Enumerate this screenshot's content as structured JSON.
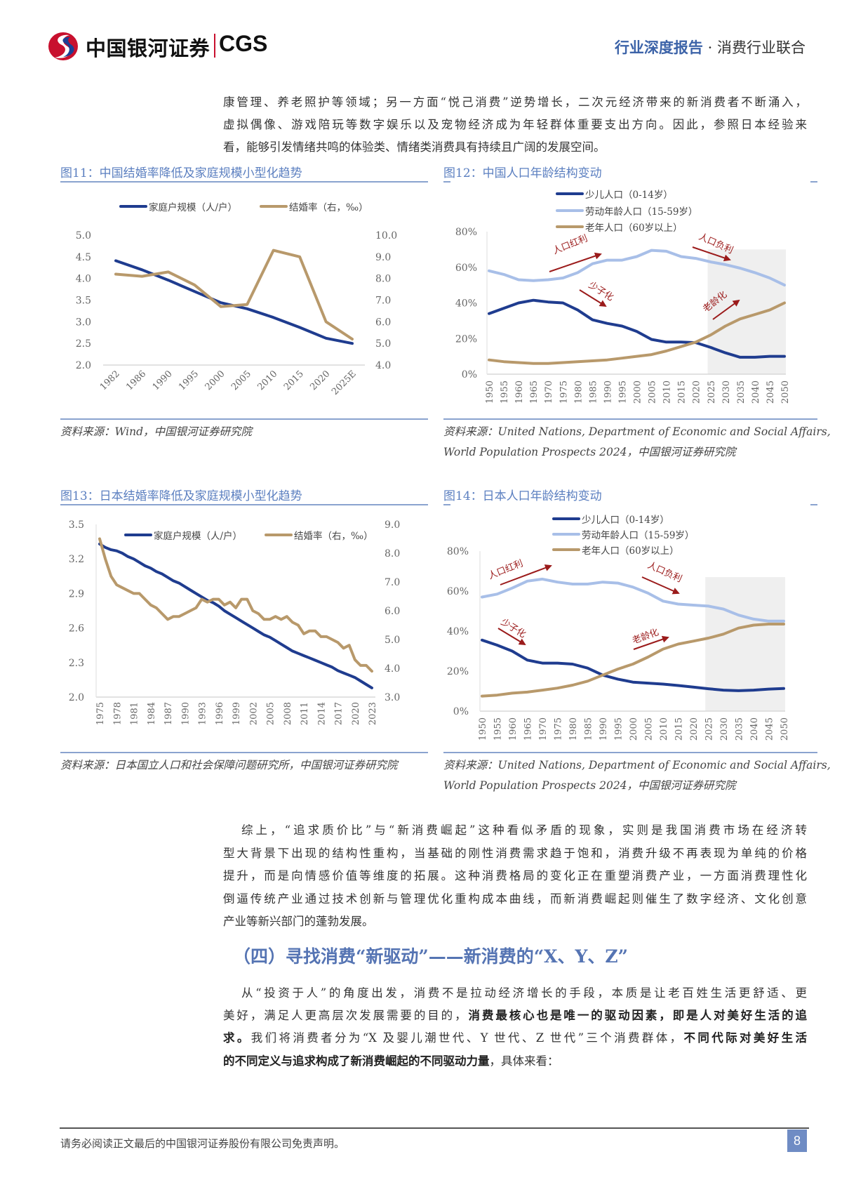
{
  "header": {
    "logo_cn": "中国银河证券",
    "logo_en": "CGS",
    "report_type": "行业深度报告",
    "separator": "·",
    "industry": "消费行业联合"
  },
  "para1": [
    "康管理、养老照护等领域；另一方面“悦己消费”逆势增长，二次元经济带来的新消费者不断涌入，",
    "虚拟偶像、游戏陪玩等数字娱乐以及宠物经济成为年轻群体重要支出方向。因此，参照日本经验来",
    "看，能够引发情绪共鸣的体验类、情绪类消费具有持续且广阔的发展空间。"
  ],
  "para2": [
    "综上，“追求质价比”与“新消费崛起”这种看似矛盾的现象，实则是我国消费市场在经济转",
    "型大背景下出现的结构性重构，当基础的刚性消费需求趋于饱和，消费升级不再表现为单纯的价格",
    "提升，而是向情感价值等维度的拓展。这种消费格局的变化正在重塑消费产业，一方面消费理性化",
    "倒逼传统产业通过技术创新与管理优化重构成本曲线，而新消费崛起则催生了数字经济、文化创意",
    "产业等新兴部门的蓬勃发展。"
  ],
  "section_heading": "（四）寻找消费“新驱动”——新消费的“X、Y、Z”",
  "para3": {
    "l1": "从“投资于人”的角度出发，消费不是拉动经济增长的手段，本质是让老百姓生活更舒适、更",
    "l2a": "美好，满足人更高层次发展需要的目的，",
    "l2b": "消费最核心也是唯一的驱动因素，即是人对美好生活的追",
    "l3a": "求。",
    "l3b": "我们将消费者分为“X 及婴儿潮世代、Y 世代、Z 世代”三个消费群体，",
    "l3c": "不同代际对美好生活",
    "l4a": "的不同定义与追求构成了新消费崛起的不同驱动力量",
    "l4b": "，具体来看："
  },
  "footer": {
    "disclaimer": "请务必阅读正文最后的中国银河证券股份有限公司免责声明。",
    "page_number": "8"
  },
  "colors": {
    "navy": "#1f3c8f",
    "gold": "#b8996b",
    "light_blue": "#a8bfe8",
    "annotation_red": "#9b1b1b",
    "title_blue": "#5b7fc0",
    "forecast_shade": "#efefef"
  },
  "chart_data": [
    {
      "id": "fig11",
      "type": "line",
      "title": "图11：中国结婚率降低及家庭规模小型化趋势",
      "source": "资料来源：Wind，中国银河证券研究院",
      "categories": [
        "1982",
        "1986",
        "1990",
        "1995",
        "2000",
        "2005",
        "2010",
        "2015",
        "2020",
        "2025E"
      ],
      "y_left": {
        "range": [
          2.0,
          5.0
        ],
        "ticks": [
          "5.0",
          "4.5",
          "4.0",
          "3.5",
          "3.0",
          "2.5",
          "2.0"
        ]
      },
      "y_right": {
        "range": [
          4.0,
          10.0
        ],
        "ticks": [
          "10.0",
          "9.0",
          "8.0",
          "7.0",
          "6.0",
          "5.0",
          "4.0"
        ]
      },
      "legend_placement": "top",
      "series": [
        {
          "name": "家庭户规模（人/户）",
          "axis": "left",
          "color": "#1f3c8f",
          "values": [
            4.41,
            4.2,
            3.96,
            3.7,
            3.44,
            3.3,
            3.1,
            2.87,
            2.62,
            2.5
          ]
        },
        {
          "name": "结婚率（右，‰）",
          "axis": "right",
          "color": "#b8996b",
          "values": [
            8.2,
            8.1,
            8.3,
            7.7,
            6.7,
            6.8,
            9.3,
            9.0,
            6.0,
            5.2
          ]
        }
      ]
    },
    {
      "id": "fig12",
      "type": "line",
      "title": "图12：中国人口年龄结构变动",
      "source_lines": [
        "资料来源：United Nations, Department of Economic and Social Affairs,",
        "World Population Prospects 2024，中国银河证券研究院"
      ],
      "x": [
        1950,
        1955,
        1960,
        1965,
        1970,
        1975,
        1980,
        1985,
        1990,
        1995,
        2000,
        2005,
        2010,
        2015,
        2020,
        2025,
        2030,
        2035,
        2040,
        2045,
        2050
      ],
      "x_ticks": [
        "1950",
        "1955",
        "1960",
        "1965",
        "1970",
        "1975",
        "1980",
        "1985",
        "1990",
        "1995",
        "2000",
        "2005",
        "2010",
        "2015",
        "2020",
        "2025",
        "2030",
        "2035",
        "2040",
        "2045",
        "2050"
      ],
      "y": {
        "range": [
          0,
          80
        ],
        "ticks": [
          "80%",
          "60%",
          "40%",
          "20%",
          "0%"
        ]
      },
      "forecast_shade": {
        "from": 2024,
        "to": 2050,
        "top": 70
      },
      "legend_placement": "top",
      "series": [
        {
          "name": "少儿人口（0-14岁）",
          "color": "#1f3c8f",
          "values": [
            34,
            37,
            40,
            41.5,
            40.5,
            40,
            36,
            30.5,
            28.5,
            27,
            24,
            19.5,
            18,
            18,
            17.7,
            15,
            12,
            9.5,
            9.5,
            10,
            10
          ]
        },
        {
          "name": "劳动年龄人口（15-59岁）",
          "color": "#a8bfe8",
          "values": [
            58,
            56,
            53,
            52.5,
            53,
            54,
            57,
            62,
            64,
            64,
            66,
            69.5,
            69,
            66,
            65,
            63,
            61.5,
            59.5,
            57,
            54,
            50
          ]
        },
        {
          "name": "老年人口（60岁以上）",
          "color": "#b8996b",
          "values": [
            8,
            7,
            6.5,
            6,
            6,
            6.5,
            7,
            7.5,
            8,
            9,
            10,
            11,
            13,
            15.5,
            18,
            22,
            27,
            31,
            33.5,
            36,
            40
          ]
        }
      ],
      "annotations": [
        "人口红利",
        "少子化",
        "人口负利",
        "老龄化"
      ]
    },
    {
      "id": "fig13",
      "type": "line",
      "title": "图13：日本结婚率降低及家庭规模小型化趋势",
      "source": "资料来源：日本国立人口和社会保障问题研究所，中国银河证券研究院",
      "x": [
        1975,
        1976,
        1977,
        1978,
        1979,
        1980,
        1981,
        1982,
        1983,
        1984,
        1985,
        1986,
        1987,
        1988,
        1989,
        1990,
        1991,
        1992,
        1993,
        1994,
        1995,
        1996,
        1997,
        1998,
        1999,
        2000,
        2001,
        2002,
        2003,
        2004,
        2005,
        2006,
        2007,
        2008,
        2009,
        2010,
        2011,
        2012,
        2013,
        2014,
        2015,
        2016,
        2017,
        2018,
        2019,
        2020,
        2021,
        2022,
        2023
      ],
      "x_ticks": [
        "1975",
        "1978",
        "1981",
        "1984",
        "1987",
        "1990",
        "1993",
        "1996",
        "1999",
        "2002",
        "2005",
        "2008",
        "2011",
        "2014",
        "2017",
        "2020",
        "2023"
      ],
      "y_left": {
        "range": [
          2.0,
          3.5
        ],
        "ticks": [
          "3.5",
          "3.2",
          "2.9",
          "2.6",
          "2.3",
          "2.0"
        ]
      },
      "y_right": {
        "range": [
          3.0,
          9.0
        ],
        "ticks": [
          "9.0",
          "8.0",
          "7.0",
          "6.0",
          "5.0",
          "4.0",
          "3.0"
        ]
      },
      "legend_placement": "top",
      "series": [
        {
          "name": "家庭户规模（人/户）",
          "axis": "left",
          "color": "#1f3c8f",
          "values": [
            3.33,
            3.3,
            3.28,
            3.27,
            3.25,
            3.22,
            3.2,
            3.17,
            3.14,
            3.12,
            3.09,
            3.07,
            3.04,
            3.01,
            2.99,
            2.96,
            2.93,
            2.9,
            2.87,
            2.84,
            2.82,
            2.79,
            2.75,
            2.72,
            2.69,
            2.66,
            2.63,
            2.6,
            2.57,
            2.54,
            2.52,
            2.49,
            2.46,
            2.43,
            2.4,
            2.38,
            2.36,
            2.34,
            2.32,
            2.3,
            2.28,
            2.26,
            2.23,
            2.21,
            2.19,
            2.17,
            2.14,
            2.11,
            2.08
          ]
        },
        {
          "name": "结婚率（右，‰）",
          "axis": "right",
          "color": "#b8996b",
          "values": [
            8.5,
            7.8,
            7.2,
            6.9,
            6.8,
            6.7,
            6.6,
            6.6,
            6.4,
            6.2,
            6.1,
            5.9,
            5.7,
            5.8,
            5.8,
            5.9,
            6.0,
            6.1,
            6.4,
            6.3,
            6.4,
            6.4,
            6.2,
            6.3,
            6.1,
            6.4,
            6.4,
            6.0,
            5.9,
            5.7,
            5.7,
            5.8,
            5.7,
            5.8,
            5.6,
            5.5,
            5.2,
            5.3,
            5.3,
            5.1,
            5.1,
            5.0,
            4.9,
            4.7,
            4.8,
            4.3,
            4.1,
            4.1,
            3.9
          ]
        }
      ]
    },
    {
      "id": "fig14",
      "type": "line",
      "title": "图14：日本人口年龄结构变动",
      "source_lines": [
        "资料来源：United Nations, Department of Economic and Social Affairs,",
        "World Population Prospects 2024，中国银河证券研究院"
      ],
      "x": [
        1950,
        1955,
        1960,
        1965,
        1970,
        1975,
        1980,
        1985,
        1990,
        1995,
        2000,
        2005,
        2010,
        2015,
        2020,
        2025,
        2030,
        2035,
        2040,
        2045,
        2050
      ],
      "x_ticks": [
        "1950",
        "1955",
        "1960",
        "1965",
        "1970",
        "1975",
        "1980",
        "1985",
        "1990",
        "1995",
        "2000",
        "2005",
        "2010",
        "2015",
        "2020",
        "2025",
        "2030",
        "2035",
        "2040",
        "2045",
        "2050"
      ],
      "y": {
        "range": [
          0,
          80
        ],
        "ticks": [
          "80%",
          "60%",
          "40%",
          "20%",
          "0%"
        ]
      },
      "forecast_shade": {
        "from": 2024,
        "to": 2050,
        "top": 67
      },
      "legend_placement": "top",
      "series": [
        {
          "name": "少儿人口（0-14岁）",
          "color": "#1f3c8f",
          "values": [
            35.5,
            33,
            30,
            25.5,
            24,
            24,
            23.5,
            21.5,
            18,
            16,
            14.5,
            14,
            13.5,
            12.8,
            12,
            11.2,
            10.5,
            10.2,
            10.5,
            11,
            11.3
          ]
        },
        {
          "name": "劳动年龄人口（15-59岁）",
          "color": "#a8bfe8",
          "values": [
            57,
            58.5,
            61.5,
            65,
            66,
            64.5,
            63.5,
            63.5,
            64.5,
            64,
            62,
            59,
            55,
            53.5,
            53,
            52.5,
            51,
            48,
            46,
            45,
            45
          ]
        },
        {
          "name": "老年人口（60岁以上）",
          "color": "#b8996b",
          "values": [
            7.5,
            8,
            9,
            9.5,
            10.5,
            11.5,
            13,
            15,
            18,
            21,
            23.5,
            27,
            31,
            33.5,
            35,
            36.5,
            38.5,
            41.5,
            43,
            43.5,
            43.5
          ]
        }
      ],
      "annotations": [
        "人口红利",
        "少子化",
        "人口负利",
        "老龄化"
      ]
    }
  ]
}
